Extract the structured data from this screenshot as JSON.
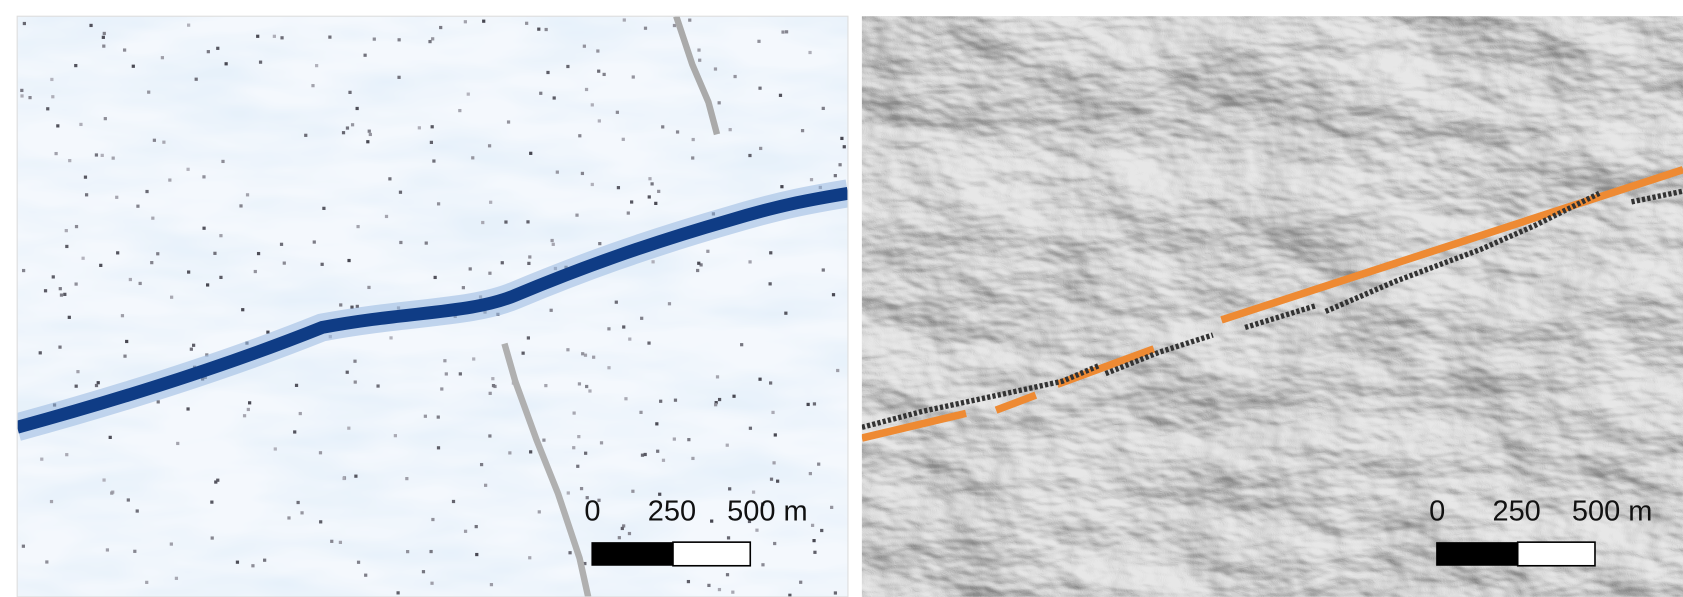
{
  "panels": [
    {
      "scale_bar": {
        "labels": [
          "0",
          "250",
          "500 m"
        ]
      }
    },
    {
      "scale_bar": {
        "labels": [
          "0",
          "250",
          "500 m"
        ]
      }
    }
  ]
}
